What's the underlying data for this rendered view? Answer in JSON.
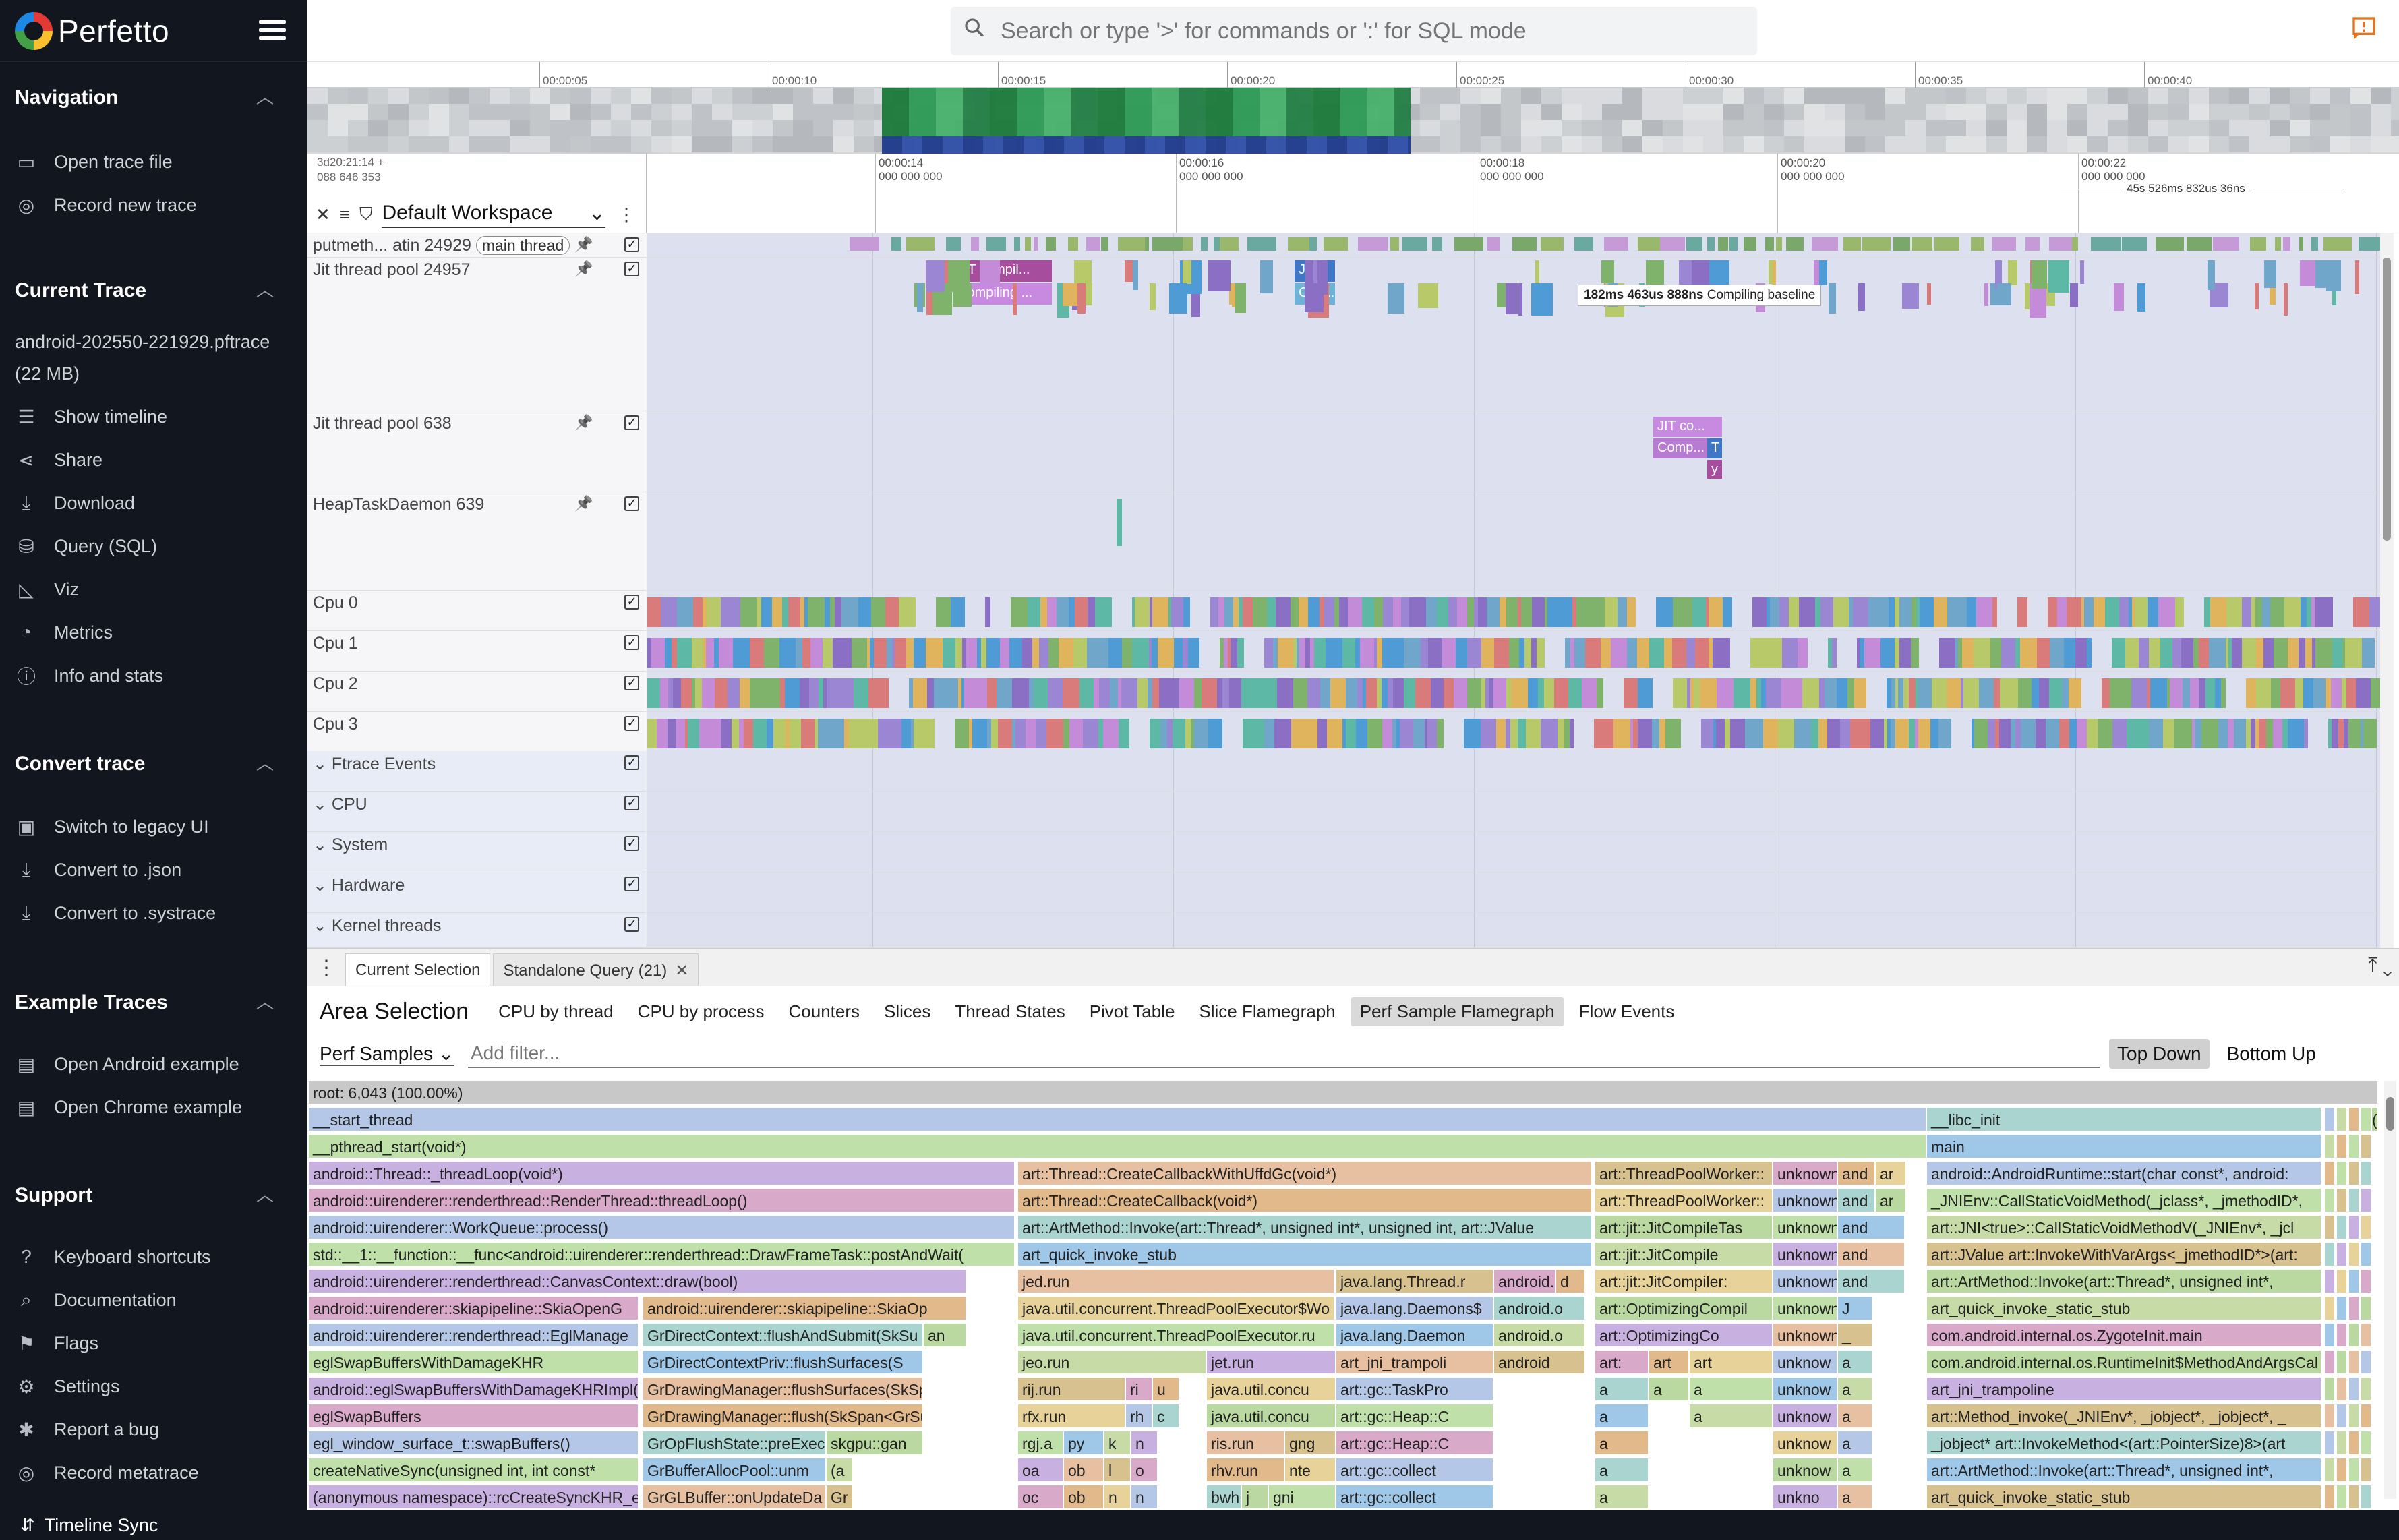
{
  "app": {
    "title": "Perfetto"
  },
  "topbar": {
    "search_placeholder": "Search or type '>' for commands or ':' for SQL mode"
  },
  "sidebar": {
    "sections": [
      {
        "title": "Navigation",
        "items": [
          {
            "label": "Open trace file",
            "icon": "folder-open-icon"
          },
          {
            "label": "Record new trace",
            "icon": "record-icon"
          }
        ]
      },
      {
        "title": "Current Trace",
        "trace_name": "android-202550-221929.pftrace (22 MB)",
        "items": [
          {
            "label": "Show timeline",
            "icon": "timeline-icon"
          },
          {
            "label": "Share",
            "icon": "share-icon"
          },
          {
            "label": "Download",
            "icon": "download-icon"
          },
          {
            "label": "Query (SQL)",
            "icon": "database-icon"
          },
          {
            "label": "Viz",
            "icon": "chart-icon"
          },
          {
            "label": "Metrics",
            "icon": "speed-icon"
          },
          {
            "label": "Info and stats",
            "icon": "info-icon"
          }
        ]
      },
      {
        "title": "Convert trace",
        "items": [
          {
            "label": "Switch to legacy UI",
            "icon": "filter-icon"
          },
          {
            "label": "Convert to .json",
            "icon": "download-icon"
          },
          {
            "label": "Convert to .systrace",
            "icon": "download-icon"
          }
        ]
      },
      {
        "title": "Example Traces",
        "items": [
          {
            "label": "Open Android example",
            "icon": "description-icon"
          },
          {
            "label": "Open Chrome example",
            "icon": "description-icon"
          }
        ]
      },
      {
        "title": "Support",
        "items": [
          {
            "label": "Keyboard shortcuts",
            "icon": "help-icon"
          },
          {
            "label": "Documentation",
            "icon": "find-in-page-icon"
          },
          {
            "label": "Flags",
            "icon": "flag-icon"
          },
          {
            "label": "Settings",
            "icon": "settings-icon"
          },
          {
            "label": "Report a bug",
            "icon": "bug-icon"
          },
          {
            "label": "Record metatrace",
            "icon": "record-icon"
          }
        ]
      }
    ]
  },
  "statusbar": {
    "label": "Timeline Sync"
  },
  "overview": {
    "ticks": [
      "00:00:05",
      "00:00:10",
      "00:00:15",
      "00:00:20",
      "00:00:25",
      "00:00:30",
      "00:00:35",
      "00:00:40"
    ]
  },
  "timeline": {
    "ts_left_1": "3d20:21:14 +",
    "ts_left_2": "088 646 353",
    "ticks": [
      {
        "t": "00:00:14",
        "s": "000 000 000"
      },
      {
        "t": "00:00:16",
        "s": "000 000 000"
      },
      {
        "t": "00:00:18",
        "s": "000 000 000"
      },
      {
        "t": "00:00:20",
        "s": "000 000 000"
      },
      {
        "t": "00:00:22",
        "s": "000 000 000"
      }
    ],
    "span": "45s 526ms 832us 36ns",
    "workspace": "Default Workspace"
  },
  "tracks": [
    {
      "name": "putmeth... atin 24929",
      "badge": "main thread"
    },
    {
      "name": "Jit thread pool 24957"
    },
    {
      "name": "Jit thread pool 638"
    },
    {
      "name": "HeapTaskDaemon 639"
    },
    {
      "name": "Cpu 0"
    },
    {
      "name": "Cpu 1"
    },
    {
      "name": "Cpu 2"
    },
    {
      "name": "Cpu 3"
    },
    {
      "name": "Ftrace Events"
    },
    {
      "name": "CPU"
    },
    {
      "name": "System"
    },
    {
      "name": "Hardware"
    },
    {
      "name": "Kernel threads"
    }
  ],
  "slices": {
    "jit1_a": "JIT compil...",
    "jit1_b": "Compiling ...",
    "jit1_c": "JIT...",
    "jit1_d": "Com...",
    "jit2_a": "JIT co...",
    "jit2_b": "Comp...",
    "jit2_c": "T",
    "jit2_d": "y"
  },
  "tooltip": {
    "dur": "182ms 463us 888ns",
    "name": "Compiling baseline"
  },
  "details": {
    "tabs": [
      {
        "label": "Current Selection"
      },
      {
        "label": "Standalone Query (21)"
      }
    ],
    "title": "Area Selection",
    "subtabs": [
      "CPU by thread",
      "CPU by process",
      "Counters",
      "Slices",
      "Thread States",
      "Pivot Table",
      "Slice Flamegraph",
      "Perf Sample Flamegraph",
      "Flow Events"
    ],
    "active_subtab": "Perf Sample Flamegraph",
    "perf_select": "Perf Samples",
    "filter_placeholder": "Add filter...",
    "mode_top": "Top Down",
    "mode_bottom": "Bottom Up"
  },
  "flame": {
    "root": "root: 6,043 (100.00%)",
    "rows": [
      [
        "__start_thread",
        "__libc_init",
        "("
      ],
      [
        "__pthread_start(void*)",
        "main"
      ],
      [
        "android::Thread::_threadLoop(void*)",
        "art::Thread::CreateCallbackWithUffdGc(void*)",
        "art::ThreadPoolWorker::",
        "unknown",
        "and",
        "ar",
        "android::AndroidRuntime::start(char const*, android:"
      ],
      [
        "android::uirenderer::renderthread::RenderThread::threadLoop()",
        "art::Thread::CreateCallback(void*)",
        "art::ThreadPoolWorker::",
        "unknown",
        "and",
        "ar",
        "_JNIEnv::CallStaticVoidMethod(_jclass*, _jmethodID*,"
      ],
      [
        "android::uirenderer::WorkQueue::process()",
        "art::ArtMethod::Invoke(art::Thread*, unsigned int*, unsigned int, art::JValue",
        "art::jit::JitCompileTas",
        "unknown",
        "and",
        "art::JNI<true>::CallStaticVoidMethodV(_JNIEnv*, _jcl"
      ],
      [
        "std::__1::__function::__func<android::uirenderer::renderthread::DrawFrameTask::postAndWait(",
        "art_quick_invoke_stub",
        "art::jit::JitCompile",
        "unknown",
        "and",
        "art::JValue art::InvokeWithVarArgs<_jmethodID*>(art:"
      ],
      [
        "android::uirenderer::renderthread::CanvasContext::draw(bool)",
        "jed.run",
        "java.lang.Thread.r",
        "android.o",
        "d",
        "art::jit::JitCompiler:",
        "unknown",
        "and",
        "art::ArtMethod::Invoke(art::Thread*, unsigned int*,"
      ],
      [
        "android::uirenderer::skiapipeline::SkiaOpenG",
        "android::uirenderer::skiapipeline::SkiaOp",
        "java.util.concurrent.ThreadPoolExecutor$Wo",
        "java.lang.Daemons$",
        "android.o",
        "art::OptimizingCompil",
        "unknown",
        "J",
        "art_quick_invoke_static_stub"
      ],
      [
        "android::uirenderer::renderthread::EglManage",
        "GrDirectContext::flushAndSubmit(SkSu",
        "an",
        "java.util.concurrent.ThreadPoolExecutor.ru",
        "java.lang.Daemon",
        "android.o",
        "art::OptimizingCo",
        "unknown",
        "_",
        "com.android.internal.os.ZygoteInit.main"
      ],
      [
        "eglSwapBuffersWithDamageKHR",
        "GrDirectContextPriv::flushSurfaces(S",
        "jeo.run",
        "jet.run",
        "art_jni_trampoli",
        "android",
        "art:",
        "art",
        "art",
        "unknow",
        "a",
        "com.android.internal.os.RuntimeInit$MethodAndArgsCal"
      ],
      [
        "android::eglSwapBuffersWithDamageKHRImpl(voi",
        "GrDrawingManager::flushSurfaces(SkSp",
        "rij.run",
        "ri",
        "u",
        "java.util.concu",
        "art::gc::TaskPro",
        "a",
        "a",
        "a",
        "unknow",
        "a",
        "art_jni_trampoline"
      ],
      [
        "eglSwapBuffers",
        "GrDrawingManager::flush(SkSpan<GrSur",
        "rfx.run",
        "rh",
        "c",
        "java.util.concu",
        "art::gc::Heap::C",
        "a",
        "a",
        "unknow",
        "a",
        "art::Method_invoke(_JNIEnv*, _jobject*, _jobject*, _"
      ],
      [
        "egl_window_surface_t::swapBuffers()",
        "GrOpFlushState::preExec",
        "skgpu::gan",
        "rgj.a",
        "py",
        "k",
        "n",
        "ris.run",
        "gng",
        "art::gc::Heap::C",
        "a",
        "unknow",
        "a",
        "_jobject* art::InvokeMethod<(art::PointerSize)8>(art"
      ],
      [
        "createNativeSync(unsigned int, int const*",
        "GrBufferAllocPool::unm",
        "(a",
        "oa",
        "ob",
        "l",
        "o",
        "rhv.run",
        "nte",
        "art::gc::collect",
        "a",
        "unknow",
        "a",
        "art::ArtMethod::Invoke(art::Thread*, unsigned int*,"
      ],
      [
        "(anonymous namespace)::rcCreateSyncKHR_en",
        "GrGLBuffer::onUpdateDa",
        "Gr",
        "oc",
        "ob",
        "n",
        "n",
        "bwh.c",
        "j",
        "gni",
        "art::gc::collect",
        "a",
        "unkno",
        "a",
        "art_quick_invoke_static_stub"
      ]
    ]
  }
}
